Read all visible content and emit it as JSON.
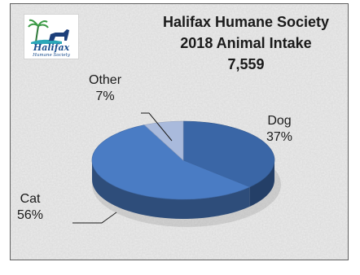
{
  "logo": {
    "name": "Halifax",
    "tagline": "Humane Society"
  },
  "chart_data": {
    "type": "pie",
    "title": [
      "Halifax Humane Society",
      "2018 Animal Intake",
      "7,559"
    ],
    "slices": [
      {
        "label": "Dog",
        "value": 37,
        "value_label": "37%",
        "color": "#3a66a6"
      },
      {
        "label": "Cat",
        "value": 56,
        "value_label": "56%",
        "color": "#4a7cc4"
      },
      {
        "label": "Other",
        "value": 7,
        "value_label": "7%",
        "color": "#a9badc"
      }
    ],
    "style": "3d",
    "legend": "none",
    "data_labels": "outside"
  }
}
